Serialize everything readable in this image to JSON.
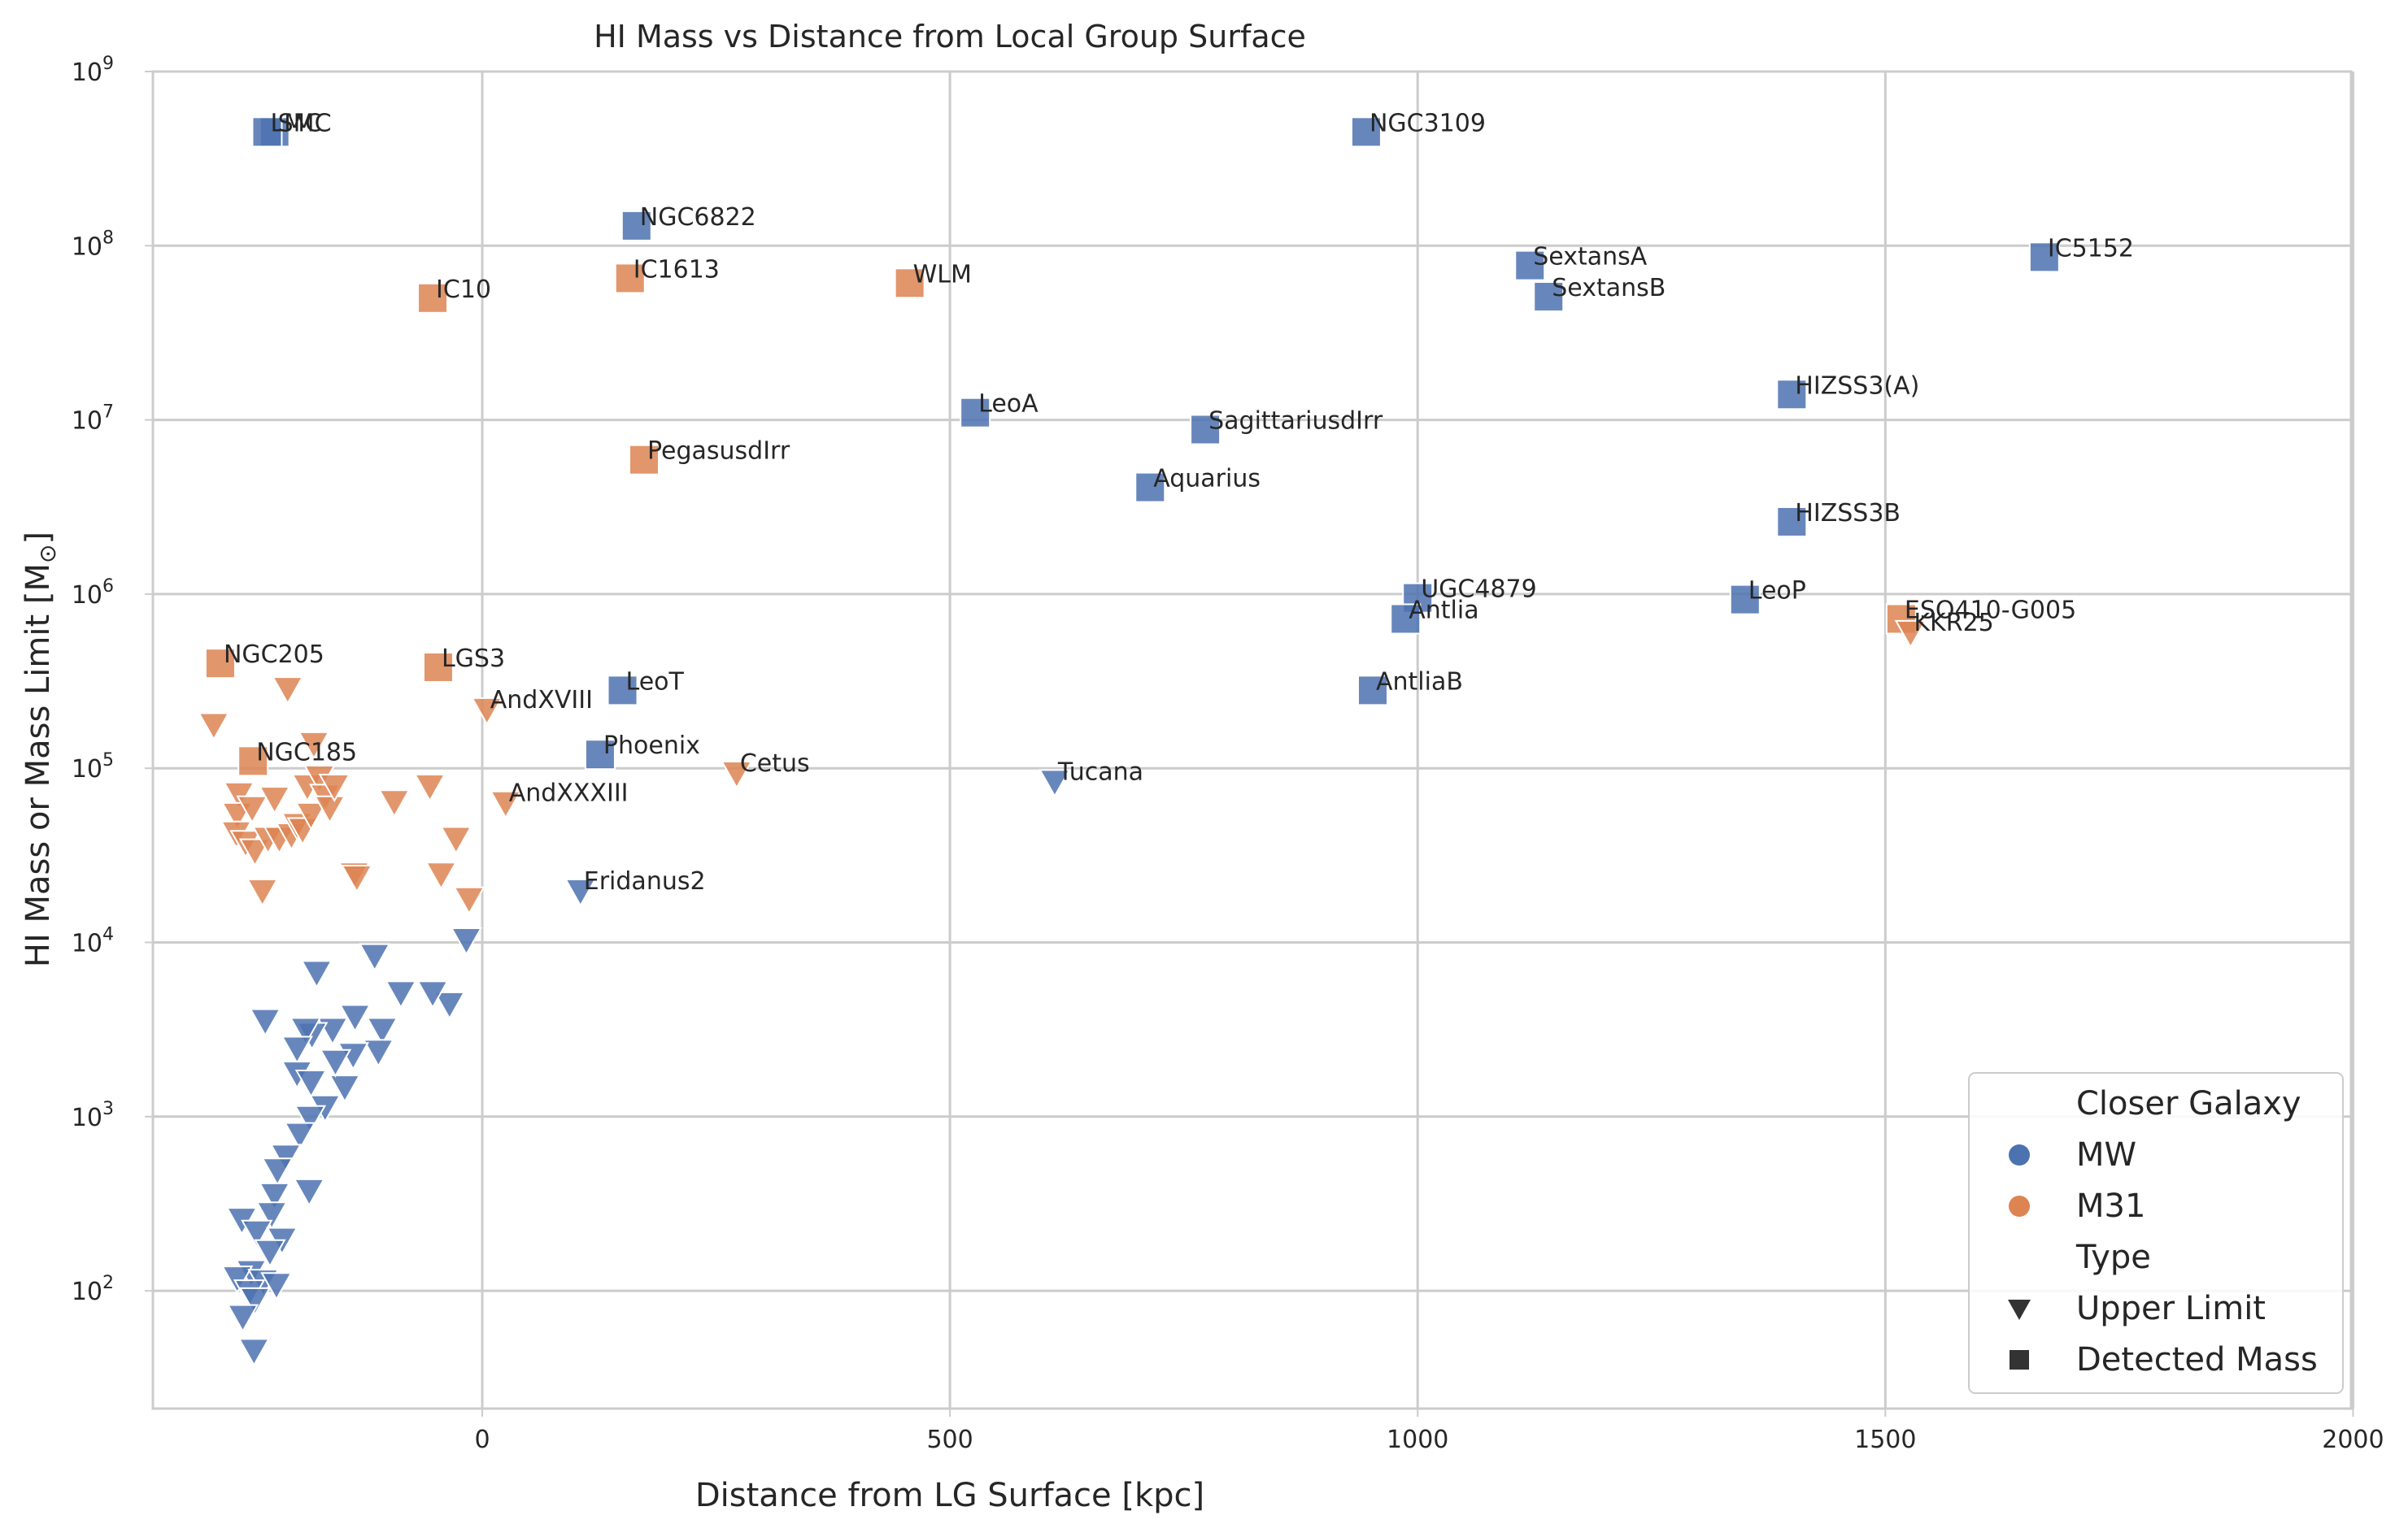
{
  "chart_data": {
    "type": "scatter",
    "title": "HI Mass vs Distance from Local Group Surface",
    "xlabel": "Distance from LG Surface [kpc]",
    "ylabel": "HI Mass or Mass Limit [M",
    "ylabel_sub": "⊙",
    "ylabel_close": "]",
    "xlim": [
      -350,
      2000
    ],
    "ylim": [
      20,
      1000000000
    ],
    "yscale": "log",
    "grid": true,
    "xticks": [
      0,
      500,
      1000,
      1500,
      2000
    ],
    "xtick_labels": [
      "0",
      "500",
      "1000",
      "1500",
      "2000"
    ],
    "yticks": [
      100,
      1000,
      10000,
      100000,
      1000000,
      10000000,
      100000000,
      1000000000
    ],
    "ytick_exponents": [
      "2",
      "3",
      "4",
      "5",
      "6",
      "7",
      "8",
      "9"
    ],
    "ytick_base": "10",
    "colors": {
      "MW": "#4c72b0",
      "M31": "#dd8452"
    },
    "legend": {
      "position": "lower right",
      "hue_title": "Closer Galaxy",
      "hue_entries": [
        "MW",
        "M31"
      ],
      "style_title": "Type",
      "style_entries": [
        "Upper Limit",
        "Detected Mass"
      ]
    },
    "labeled_points": [
      {
        "name": "SMC",
        "x": -222,
        "y": 450000000,
        "group": "MW",
        "type": "detected"
      },
      {
        "name": "LMC",
        "x": -230,
        "y": 450000000,
        "group": "MW",
        "type": "detected"
      },
      {
        "name": "NGC3109",
        "x": 945,
        "y": 450000000,
        "group": "MW",
        "type": "detected"
      },
      {
        "name": "NGC6822",
        "x": 165,
        "y": 130000000,
        "group": "MW",
        "type": "detected"
      },
      {
        "name": "IC5152",
        "x": 1670,
        "y": 86000000,
        "group": "MW",
        "type": "detected"
      },
      {
        "name": "SextansA",
        "x": 1120,
        "y": 77000000,
        "group": "MW",
        "type": "detected"
      },
      {
        "name": "SextansB",
        "x": 1140,
        "y": 51000000,
        "group": "MW",
        "type": "detected"
      },
      {
        "name": "IC10",
        "x": -53,
        "y": 50000000,
        "group": "M31",
        "type": "detected"
      },
      {
        "name": "IC1613",
        "x": 158,
        "y": 65000000,
        "group": "M31",
        "type": "detected"
      },
      {
        "name": "WLM",
        "x": 457,
        "y": 61000000,
        "group": "M31",
        "type": "detected"
      },
      {
        "name": "HIZSS3(A)",
        "x": 1400,
        "y": 14000000,
        "group": "MW",
        "type": "detected"
      },
      {
        "name": "LeoA",
        "x": 527,
        "y": 11000000,
        "group": "MW",
        "type": "detected"
      },
      {
        "name": "SagittariusdIrr",
        "x": 773,
        "y": 8800000,
        "group": "MW",
        "type": "detected"
      },
      {
        "name": "PegasusdIrr",
        "x": 173,
        "y": 5900000,
        "group": "M31",
        "type": "detected"
      },
      {
        "name": "Aquarius",
        "x": 714,
        "y": 4100000,
        "group": "MW",
        "type": "detected"
      },
      {
        "name": "HIZSS3B",
        "x": 1400,
        "y": 2600000,
        "group": "MW",
        "type": "detected"
      },
      {
        "name": "UGC4879",
        "x": 1000,
        "y": 950000,
        "group": "MW",
        "type": "detected"
      },
      {
        "name": "LeoP",
        "x": 1350,
        "y": 930000,
        "group": "MW",
        "type": "detected"
      },
      {
        "name": "Antlia",
        "x": 987,
        "y": 720000,
        "group": "MW",
        "type": "detected"
      },
      {
        "name": "ESO410-G005",
        "x": 1517,
        "y": 720000,
        "group": "M31",
        "type": "detected"
      },
      {
        "name": "KKR25",
        "x": 1527,
        "y": 610000,
        "group": "M31",
        "type": "upper"
      },
      {
        "name": "NGC205",
        "x": -280,
        "y": 400000,
        "group": "M31",
        "type": "detected"
      },
      {
        "name": "LGS3",
        "x": -47,
        "y": 380000,
        "group": "M31",
        "type": "detected"
      },
      {
        "name": "LeoT",
        "x": 150,
        "y": 280000,
        "group": "MW",
        "type": "detected"
      },
      {
        "name": "AntliaB",
        "x": 952,
        "y": 280000,
        "group": "MW",
        "type": "detected"
      },
      {
        "name": "AndXVIII",
        "x": 5,
        "y": 220000,
        "group": "M31",
        "type": "upper"
      },
      {
        "name": "NGC185",
        "x": -245,
        "y": 110000,
        "group": "M31",
        "type": "detected"
      },
      {
        "name": "Phoenix",
        "x": 126,
        "y": 120000,
        "group": "MW",
        "type": "detected"
      },
      {
        "name": "Cetus",
        "x": 272,
        "y": 95000,
        "group": "M31",
        "type": "upper"
      },
      {
        "name": "Tucana",
        "x": 612,
        "y": 85000,
        "group": "MW",
        "type": "upper"
      },
      {
        "name": "AndXXXIII",
        "x": 25,
        "y": 64000,
        "group": "M31",
        "type": "upper"
      },
      {
        "name": "Eridanus2",
        "x": 105,
        "y": 20000,
        "group": "MW",
        "type": "upper"
      }
    ],
    "unlabeled_points": [
      {
        "x": -287,
        "y": 180000,
        "group": "M31",
        "type": "upper"
      },
      {
        "x": -208,
        "y": 290000,
        "group": "M31",
        "type": "upper"
      },
      {
        "x": -260,
        "y": 72000,
        "group": "M31",
        "type": "upper"
      },
      {
        "x": -262,
        "y": 55000,
        "group": "M31",
        "type": "upper"
      },
      {
        "x": -263,
        "y": 43000,
        "group": "M31",
        "type": "upper"
      },
      {
        "x": -253,
        "y": 38000,
        "group": "M31",
        "type": "upper"
      },
      {
        "x": -246,
        "y": 60000,
        "group": "M31",
        "type": "upper"
      },
      {
        "x": -243,
        "y": 34000,
        "group": "M31",
        "type": "upper"
      },
      {
        "x": -235,
        "y": 20000,
        "group": "M31",
        "type": "upper"
      },
      {
        "x": -229,
        "y": 40000,
        "group": "M31",
        "type": "upper"
      },
      {
        "x": -222,
        "y": 68000,
        "group": "M31",
        "type": "upper"
      },
      {
        "x": -217,
        "y": 40000,
        "group": "M31",
        "type": "upper"
      },
      {
        "x": -204,
        "y": 42000,
        "group": "M31",
        "type": "upper"
      },
      {
        "x": -198,
        "y": 48000,
        "group": "M31",
        "type": "upper"
      },
      {
        "x": -192,
        "y": 45000,
        "group": "M31",
        "type": "upper"
      },
      {
        "x": -187,
        "y": 80000,
        "group": "M31",
        "type": "upper"
      },
      {
        "x": -183,
        "y": 55000,
        "group": "M31",
        "type": "upper"
      },
      {
        "x": -180,
        "y": 140000,
        "group": "M31",
        "type": "upper"
      },
      {
        "x": -174,
        "y": 90000,
        "group": "M31",
        "type": "upper"
      },
      {
        "x": -168,
        "y": 70000,
        "group": "M31",
        "type": "upper"
      },
      {
        "x": -163,
        "y": 60000,
        "group": "M31",
        "type": "upper"
      },
      {
        "x": -158,
        "y": 80000,
        "group": "M31",
        "type": "upper"
      },
      {
        "x": -137,
        "y": 25000,
        "group": "M31",
        "type": "upper"
      },
      {
        "x": -134,
        "y": 24000,
        "group": "M31",
        "type": "upper"
      },
      {
        "x": -94,
        "y": 65000,
        "group": "M31",
        "type": "upper"
      },
      {
        "x": -56,
        "y": 80000,
        "group": "M31",
        "type": "upper"
      },
      {
        "x": -44,
        "y": 25000,
        "group": "M31",
        "type": "upper"
      },
      {
        "x": -28,
        "y": 40000,
        "group": "M31",
        "type": "upper"
      },
      {
        "x": -14,
        "y": 18000,
        "group": "M31",
        "type": "upper"
      },
      {
        "x": -17,
        "y": 10500,
        "group": "MW",
        "type": "upper"
      },
      {
        "x": -35,
        "y": 4500,
        "group": "MW",
        "type": "upper"
      },
      {
        "x": -53,
        "y": 5200,
        "group": "MW",
        "type": "upper"
      },
      {
        "x": -87,
        "y": 5200,
        "group": "MW",
        "type": "upper"
      },
      {
        "x": -115,
        "y": 8500,
        "group": "MW",
        "type": "upper"
      },
      {
        "x": -107,
        "y": 3200,
        "group": "MW",
        "type": "upper"
      },
      {
        "x": -111,
        "y": 2400,
        "group": "MW",
        "type": "upper"
      },
      {
        "x": -136,
        "y": 3800,
        "group": "MW",
        "type": "upper"
      },
      {
        "x": -138,
        "y": 2300,
        "group": "MW",
        "type": "upper"
      },
      {
        "x": -147,
        "y": 1500,
        "group": "MW",
        "type": "upper"
      },
      {
        "x": -157,
        "y": 2100,
        "group": "MW",
        "type": "upper"
      },
      {
        "x": -160,
        "y": 3200,
        "group": "MW",
        "type": "upper"
      },
      {
        "x": -177,
        "y": 6800,
        "group": "MW",
        "type": "upper"
      },
      {
        "x": -182,
        "y": 3000,
        "group": "MW",
        "type": "upper"
      },
      {
        "x": -189,
        "y": 3200,
        "group": "MW",
        "type": "upper"
      },
      {
        "x": -198,
        "y": 2500,
        "group": "MW",
        "type": "upper"
      },
      {
        "x": -198,
        "y": 1800,
        "group": "MW",
        "type": "upper"
      },
      {
        "x": -183,
        "y": 1600,
        "group": "MW",
        "type": "upper"
      },
      {
        "x": -168,
        "y": 1150,
        "group": "MW",
        "type": "upper"
      },
      {
        "x": -184,
        "y": 1000,
        "group": "MW",
        "type": "upper"
      },
      {
        "x": -195,
        "y": 800,
        "group": "MW",
        "type": "upper"
      },
      {
        "x": -210,
        "y": 600,
        "group": "MW",
        "type": "upper"
      },
      {
        "x": -219,
        "y": 500,
        "group": "MW",
        "type": "upper"
      },
      {
        "x": -222,
        "y": 360,
        "group": "MW",
        "type": "upper"
      },
      {
        "x": -185,
        "y": 380,
        "group": "MW",
        "type": "upper"
      },
      {
        "x": -232,
        "y": 3600,
        "group": "MW",
        "type": "upper"
      },
      {
        "x": -257,
        "y": 260,
        "group": "MW",
        "type": "upper"
      },
      {
        "x": -225,
        "y": 280,
        "group": "MW",
        "type": "upper"
      },
      {
        "x": -241,
        "y": 220,
        "group": "MW",
        "type": "upper"
      },
      {
        "x": -214,
        "y": 200,
        "group": "MW",
        "type": "upper"
      },
      {
        "x": -227,
        "y": 170,
        "group": "MW",
        "type": "upper"
      },
      {
        "x": -247,
        "y": 130,
        "group": "MW",
        "type": "upper"
      },
      {
        "x": -262,
        "y": 120,
        "group": "MW",
        "type": "upper"
      },
      {
        "x": -234,
        "y": 115,
        "group": "MW",
        "type": "upper"
      },
      {
        "x": -220,
        "y": 110,
        "group": "MW",
        "type": "upper"
      },
      {
        "x": -249,
        "y": 100,
        "group": "MW",
        "type": "upper"
      },
      {
        "x": -243,
        "y": 90,
        "group": "MW",
        "type": "upper"
      },
      {
        "x": -256,
        "y": 72,
        "group": "MW",
        "type": "upper"
      },
      {
        "x": -244,
        "y": 46,
        "group": "MW",
        "type": "upper"
      }
    ]
  }
}
